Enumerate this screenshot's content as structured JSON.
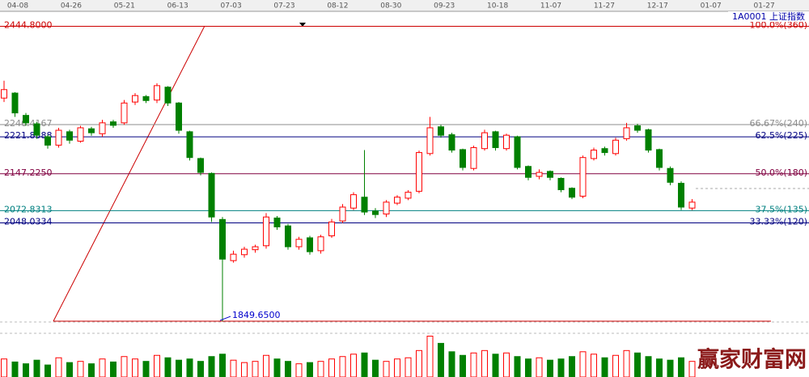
{
  "chart_data": {
    "type": "candlestick",
    "code_label": "1A0001 上证指数",
    "watermark": "赢家财富网",
    "date_labels": [
      "04-08",
      "04-26",
      "05-21",
      "06-13",
      "07-03",
      "07-23",
      "08-12",
      "08-30",
      "09-23",
      "10-18",
      "11-07",
      "11-27",
      "12-17",
      "01-07",
      "01-27"
    ],
    "ylim": [
      1840,
      2475
    ],
    "vlim": [
      0,
      70
    ],
    "levels": [
      {
        "value": 2444.8,
        "label": "2444.8000",
        "ratio_label": "100.0%(360)",
        "color": "#cc0000"
      },
      {
        "value": 2246.4167,
        "label": "2246.4167",
        "ratio_label": "66.67%(240)",
        "color": "#8c8c8c"
      },
      {
        "value": 2221.8388,
        "label": "2221.8388",
        "ratio_label": "62.5%(225)",
        "color": "#000080"
      },
      {
        "value": 2147.225,
        "label": "2147.2250",
        "ratio_label": "50.0%(180)",
        "color": "#800040"
      },
      {
        "value": 2072.8313,
        "label": "2072.8313",
        "ratio_label": "37.5%(135)",
        "color": "#008080"
      },
      {
        "value": 2048.0334,
        "label": "2048.0334",
        "ratio_label": "33.33%(120)",
        "color": "#000080"
      }
    ],
    "low_annotation": {
      "value": 1849.65,
      "label": "1849.6500"
    },
    "up_color": "#ff0000",
    "down_color": "#008000",
    "open": [
      2300,
      2310,
      2265,
      2248,
      2222,
      2205,
      2232,
      2213,
      2238,
      2228,
      2252,
      2250,
      2292,
      2303,
      2296,
      2322,
      2290,
      2232,
      2178,
      2148,
      2055,
      1972,
      1984,
      1994,
      2002,
      2058,
      2042,
      2000,
      2018,
      1992,
      2022,
      2052,
      2078,
      2100,
      2072,
      2066,
      2088,
      2098,
      2112,
      2188,
      2242,
      2226,
      2196,
      2158,
      2198,
      2232,
      2198,
      2222,
      2162,
      2142,
      2152,
      2138,
      2118,
      2102,
      2178,
      2198,
      2188,
      2218,
      2244,
      2236,
      2196,
      2158,
      2128,
      2078
    ],
    "high": [
      2335,
      2312,
      2270,
      2252,
      2226,
      2240,
      2236,
      2244,
      2242,
      2256,
      2256,
      2296,
      2310,
      2306,
      2330,
      2324,
      2292,
      2234,
      2180,
      2150,
      2060,
      1992,
      2000,
      2004,
      2068,
      2062,
      2046,
      2020,
      2022,
      2024,
      2056,
      2086,
      2110,
      2195,
      2078,
      2094,
      2104,
      2114,
      2194,
      2262,
      2246,
      2230,
      2198,
      2204,
      2236,
      2234,
      2228,
      2224,
      2164,
      2156,
      2154,
      2140,
      2120,
      2184,
      2200,
      2202,
      2220,
      2250,
      2248,
      2238,
      2198,
      2162,
      2132,
      2096
    ],
    "low": [
      2292,
      2262,
      2244,
      2218,
      2198,
      2200,
      2208,
      2210,
      2224,
      2222,
      2240,
      2246,
      2286,
      2290,
      2290,
      2284,
      2228,
      2174,
      2144,
      2050,
      1849.65,
      1968,
      1978,
      1988,
      1996,
      2034,
      1994,
      1994,
      1984,
      1986,
      2018,
      2048,
      2074,
      2064,
      2058,
      2060,
      2084,
      2094,
      2108,
      2184,
      2220,
      2190,
      2154,
      2154,
      2194,
      2194,
      2194,
      2156,
      2134,
      2136,
      2134,
      2110,
      2096,
      2098,
      2174,
      2184,
      2184,
      2214,
      2230,
      2190,
      2154,
      2124,
      2074,
      2074
    ],
    "close": [
      2317,
      2270,
      2250,
      2225,
      2205,
      2235,
      2215,
      2240,
      2230,
      2250,
      2245,
      2290,
      2305,
      2295,
      2325,
      2290,
      2235,
      2180,
      2150,
      2060,
      1975,
      1985,
      1995,
      2000,
      2060,
      2040,
      2000,
      2015,
      1990,
      2020,
      2050,
      2080,
      2105,
      2070,
      2065,
      2090,
      2100,
      2110,
      2190,
      2240,
      2225,
      2195,
      2160,
      2200,
      2230,
      2200,
      2225,
      2160,
      2140,
      2150,
      2140,
      2115,
      2100,
      2180,
      2195,
      2190,
      2215,
      2240,
      2235,
      2195,
      2160,
      2130,
      2080,
      2090
    ],
    "volume": [
      30,
      25,
      22,
      28,
      20,
      32,
      24,
      26,
      22,
      30,
      25,
      34,
      30,
      26,
      36,
      32,
      28,
      30,
      26,
      34,
      38,
      28,
      24,
      26,
      36,
      30,
      26,
      22,
      24,
      26,
      30,
      34,
      38,
      40,
      28,
      26,
      30,
      32,
      44,
      68,
      56,
      42,
      36,
      40,
      44,
      38,
      40,
      34,
      30,
      32,
      28,
      30,
      34,
      42,
      38,
      32,
      36,
      44,
      40,
      34,
      30,
      28,
      32,
      26
    ]
  }
}
